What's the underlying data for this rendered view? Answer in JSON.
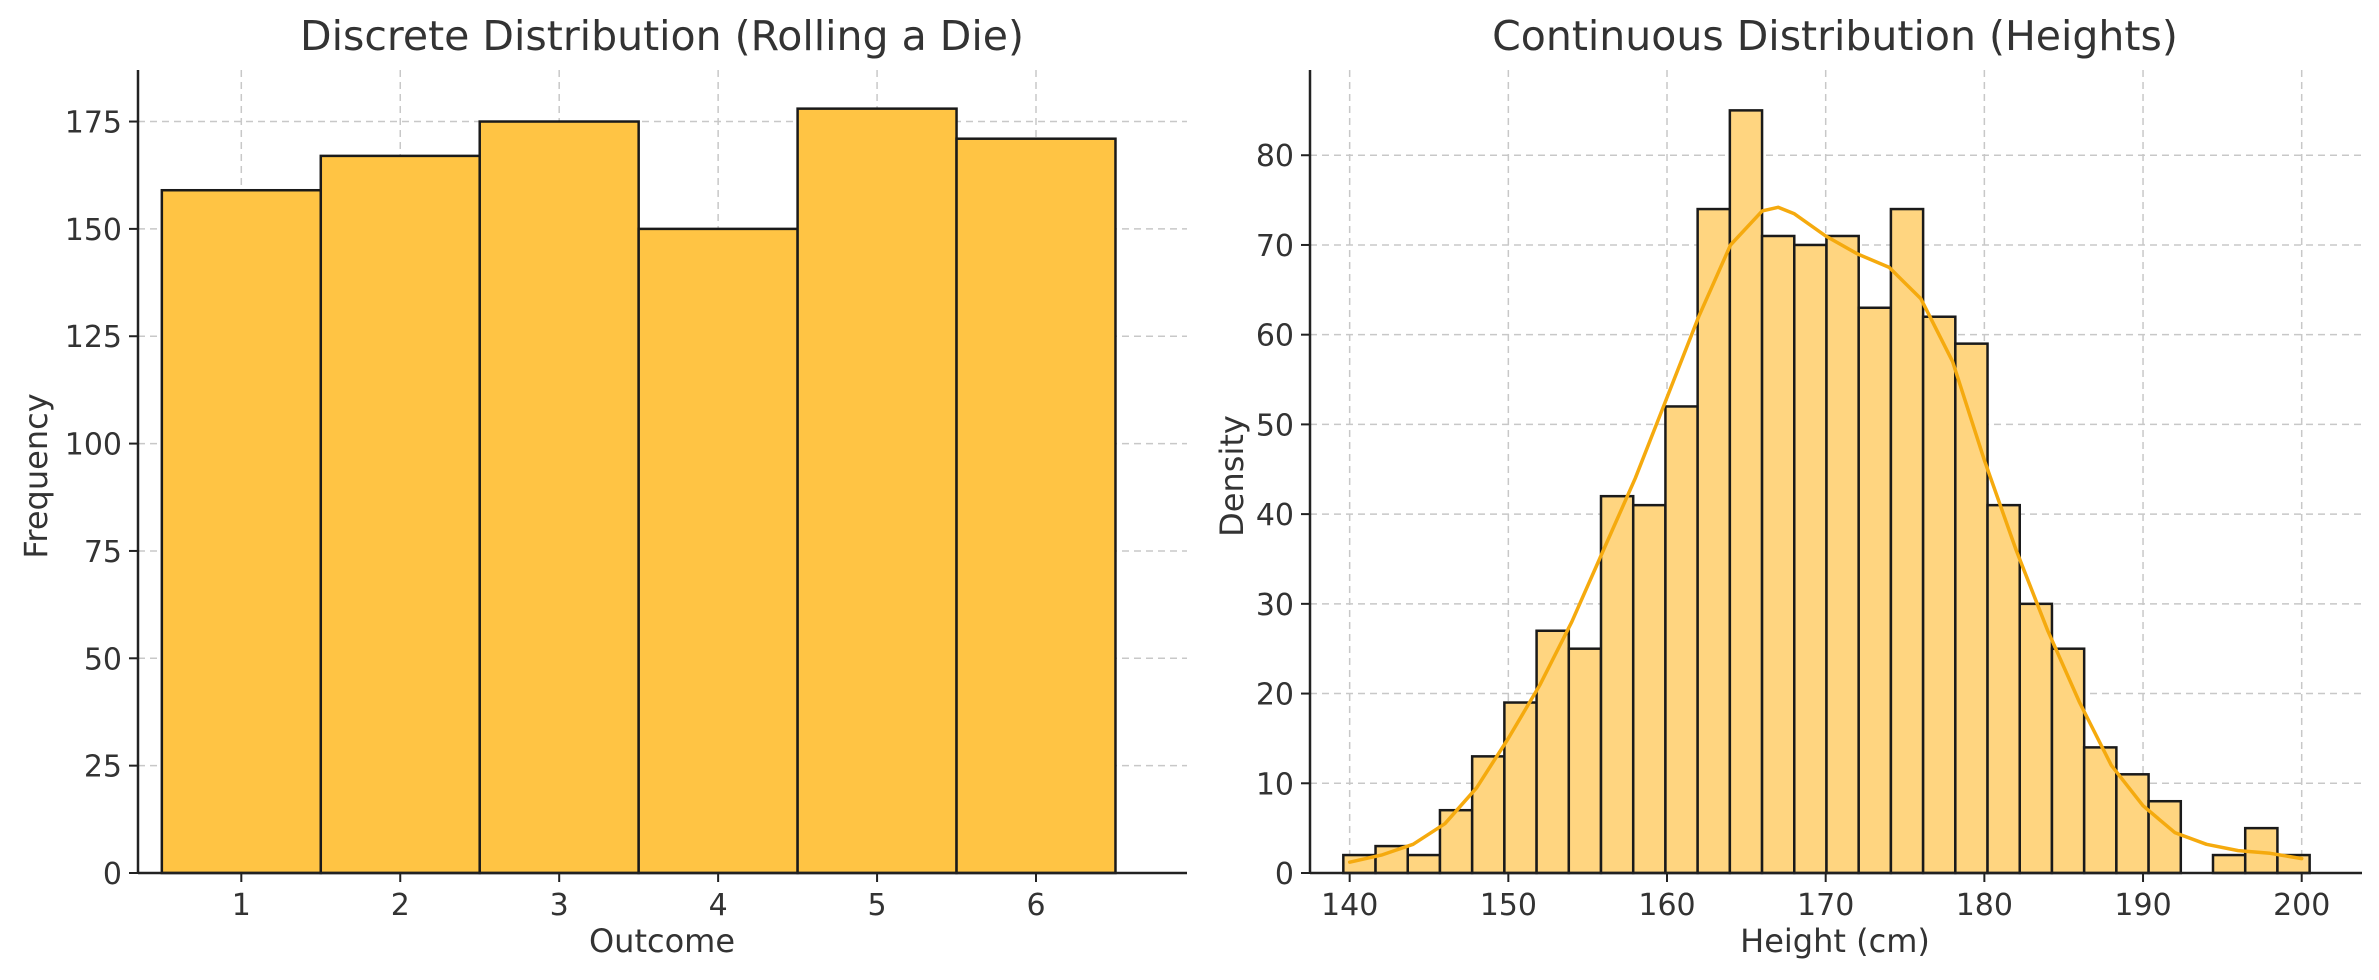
{
  "colors": {
    "bar_discrete": "#FFC444",
    "bar_continuous": "#FFD580",
    "kde_line": "#F5AA0E",
    "edge": "#1a1a1a"
  },
  "chart_data": [
    {
      "type": "bar",
      "title": "Discrete Distribution (Rolling a Die)",
      "xlabel": "Outcome",
      "ylabel": "Frequency",
      "categories": [
        "1",
        "2",
        "3",
        "4",
        "5",
        "6"
      ],
      "values": [
        159,
        167,
        175,
        150,
        178,
        171
      ],
      "xlim": [
        0.35,
        6.95
      ],
      "ylim": [
        0,
        187
      ],
      "x_ticks": [
        "1",
        "2",
        "3",
        "4",
        "5",
        "6"
      ],
      "y_ticks": [
        0,
        25,
        50,
        75,
        100,
        125,
        150,
        175
      ],
      "grid": true,
      "legend": "none"
    },
    {
      "type": "bar",
      "subtype": "histogram-with-kde",
      "title": "Continuous Distribution (Heights)",
      "xlabel": "Height (cm)",
      "ylabel": "Density",
      "bin_start": 139.6,
      "bin_width": 2.03,
      "values": [
        2,
        3,
        2,
        7,
        13,
        19,
        27,
        25,
        42,
        41,
        52,
        74,
        85,
        71,
        70,
        71,
        63,
        74,
        62,
        59,
        41,
        30,
        25,
        14,
        11,
        8,
        0,
        2,
        5,
        2
      ],
      "kde": {
        "x": [
          140,
          142,
          144,
          146,
          148,
          150,
          152,
          154,
          156,
          158,
          160,
          162,
          164,
          166,
          167,
          168,
          170,
          172,
          174,
          176,
          178,
          180,
          182,
          184,
          186,
          188,
          190,
          192,
          194,
          196,
          198,
          200
        ],
        "y": [
          1.2,
          2.0,
          3.2,
          5.5,
          9.5,
          15,
          21,
          28,
          36,
          44,
          53,
          62,
          70,
          73.8,
          74.2,
          73.5,
          71,
          69,
          67.5,
          64,
          57,
          46,
          36,
          27,
          19,
          12,
          7.5,
          4.5,
          3.2,
          2.5,
          2.2,
          1.6
        ]
      },
      "xlim": [
        137.5,
        203.8
      ],
      "ylim": [
        0,
        89.5
      ],
      "x_ticks": [
        140,
        150,
        160,
        170,
        180,
        190,
        200
      ],
      "y_ticks": [
        0,
        10,
        20,
        30,
        40,
        50,
        60,
        70,
        80
      ],
      "grid": true,
      "legend": "none"
    }
  ]
}
